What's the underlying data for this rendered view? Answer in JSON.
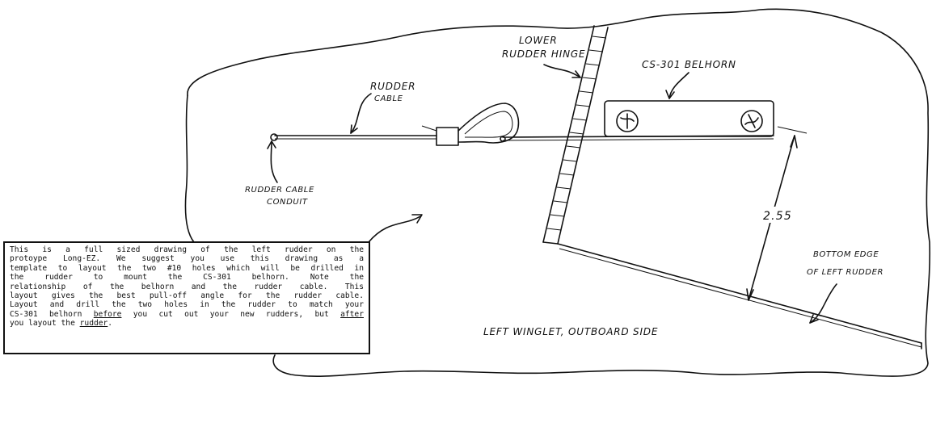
{
  "labels": {
    "lower_rudder_hinge": [
      "LOWER",
      "RUDDER HINGE"
    ],
    "belhorn": "CS-301 BELHORN",
    "rudder_cable": [
      "RUDDER",
      "CABLE"
    ],
    "rudder_cable_conduit": [
      "RUDDER CABLE",
      "CONDUIT"
    ],
    "dimension": "2.55",
    "bottom_edge": [
      "BOTTOM EDGE",
      "OF LEFT RUDDER"
    ],
    "winglet": "LEFT WINGLET, OUTBOARD SIDE"
  },
  "note": {
    "lines": [
      [
        "This is a full sized drawing of the left rudder on the"
      ],
      [
        "protoype Long-EZ.  We suggest you use this drawing as a"
      ],
      [
        "template to layout the two #10 holes which will be drilled in"
      ],
      [
        "the rudder to mount the CS-301 belhorn.  Note the"
      ],
      [
        "relationship of the belhorn and the rudder cable.  This"
      ],
      [
        "layout gives the best pull-off angle for the rudder cable."
      ],
      [
        "Layout and drill the two holes in the rudder to match your"
      ],
      [
        "CS-301 belhorn ",
        "before",
        " you cut out your new rudders, but ",
        "after"
      ],
      [
        "you layout the ",
        "rudder",
        "."
      ]
    ]
  }
}
